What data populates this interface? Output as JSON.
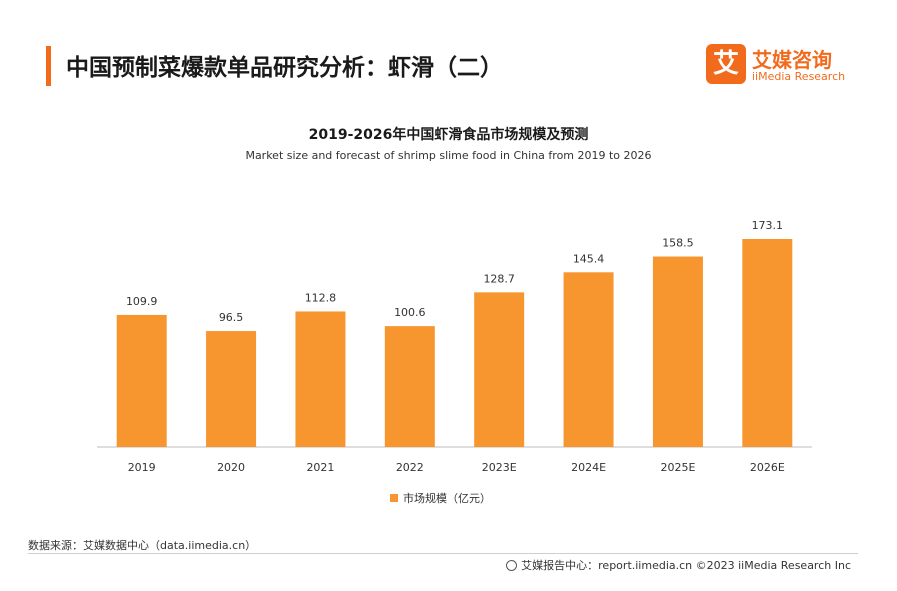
{
  "header": {
    "title": "中国预制菜爆款单品研究分析：虾滑（二）",
    "logo_mark": "艾",
    "logo_cn": "艾媒咨询",
    "logo_en": "iiMedia Research"
  },
  "chart_data": {
    "type": "bar",
    "title": "2019-2026年中国虾滑食品市场规模及预测",
    "subtitle": "Market size and forecast of shrimp slime food in China from 2019 to 2026",
    "categories": [
      "2019",
      "2020",
      "2021",
      "2022",
      "2023E",
      "2024E",
      "2025E",
      "2026E"
    ],
    "series": [
      {
        "name": "市场规模（亿元）",
        "values": [
          109.9,
          96.5,
          112.8,
          100.6,
          128.7,
          145.4,
          158.5,
          173.1
        ]
      }
    ],
    "data_labels": [
      "109.9",
      "96.5",
      "112.8",
      "100.6",
      "128.7",
      "145.4",
      "158.5",
      "173.1"
    ],
    "ylim": [
      0,
      180
    ],
    "xlabel": "",
    "ylabel": "",
    "grid": false,
    "legend_position": "bottom",
    "color": "#f7952f"
  },
  "footer": {
    "source": "数据来源：艾媒数据中心（data.iimedia.cn）",
    "copyright": "艾媒报告中心：report.iimedia.cn  ©2023  iiMedia Research  Inc"
  }
}
